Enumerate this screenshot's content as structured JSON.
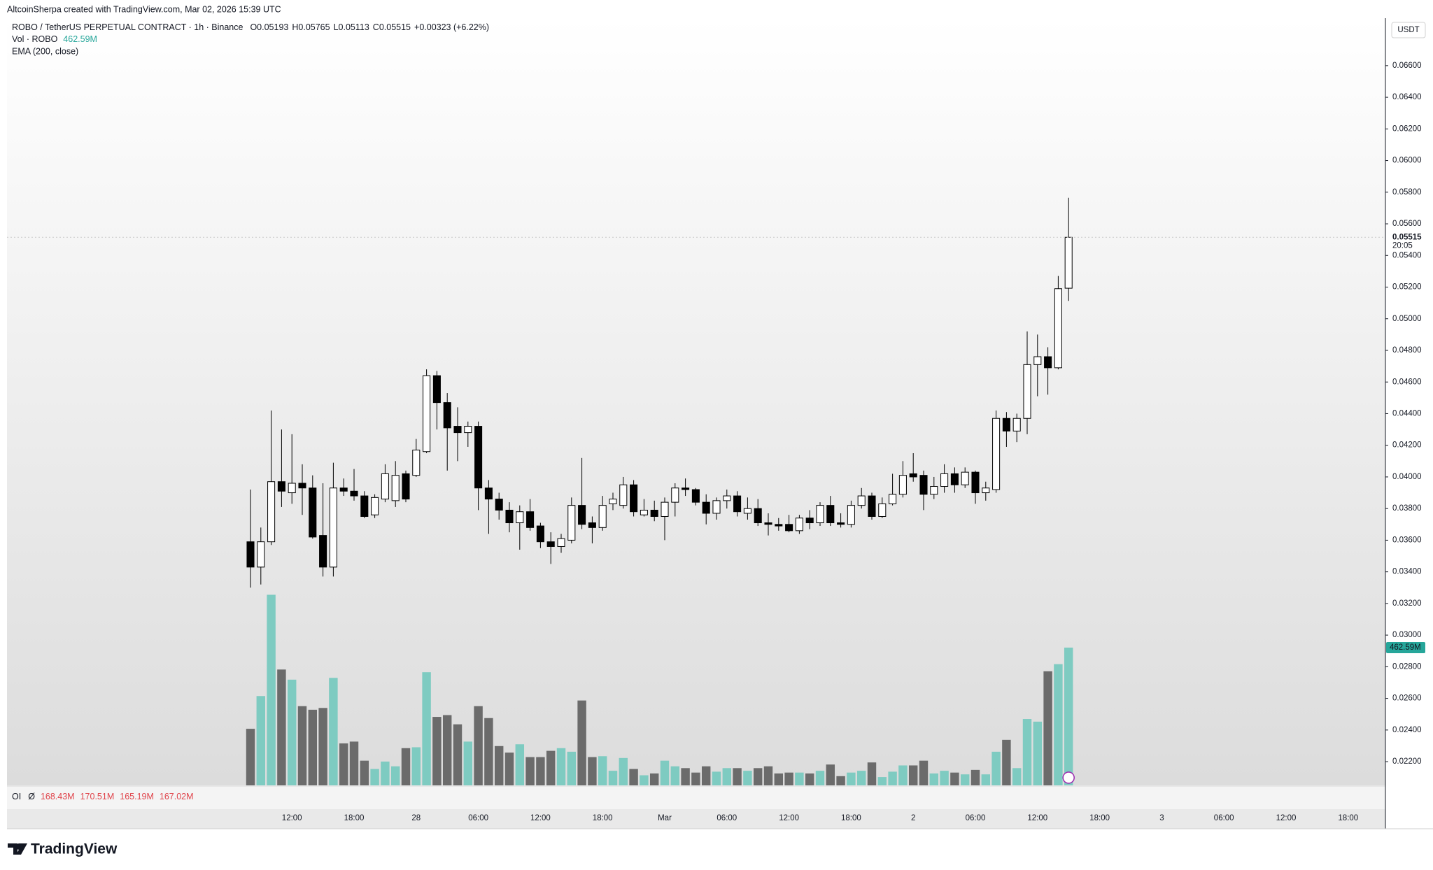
{
  "header": {
    "attribution": "AltcoinSherpa created with TradingView.com, Mar 02, 2026 15:39 UTC"
  },
  "legend": {
    "symbol": "ROBO / TetherUS PERPETUAL CONTRACT · 1h · Binance",
    "o": "O",
    "h": "H",
    "l": "L",
    "c": "C",
    "change": "+0.00323 (+6.22%)",
    "vol_label": "Vol · ROBO",
    "ema_label": "EMA (200, close)"
  },
  "oi": {
    "label": "OI",
    "symbol": "Ø",
    "values": [
      "168.43M",
      "170.51M",
      "165.19M",
      "167.02M"
    ]
  },
  "footer": {
    "logo": "TradingView"
  },
  "chart_data": {
    "type": "candlestick",
    "price_axis_unit": "USDT",
    "countdown": "20:05",
    "up_color": "#ffffff",
    "down_color": "#000000",
    "border_color": "#000000",
    "ylim": [
      0.0205,
      0.069
    ],
    "yticks": [
      {
        "value": 0.022,
        "label": "0.02200"
      },
      {
        "value": 0.024,
        "label": "0.02400"
      },
      {
        "value": 0.026,
        "label": "0.02600"
      },
      {
        "value": 0.028,
        "label": "0.02800"
      },
      {
        "value": 0.03,
        "label": "0.03000"
      },
      {
        "value": 0.032,
        "label": "0.03200"
      },
      {
        "value": 0.034,
        "label": "0.03400"
      },
      {
        "value": 0.036,
        "label": "0.03600"
      },
      {
        "value": 0.038,
        "label": "0.03800"
      },
      {
        "value": 0.04,
        "label": "0.04000"
      },
      {
        "value": 0.042,
        "label": "0.04200"
      },
      {
        "value": 0.044,
        "label": "0.04400"
      },
      {
        "value": 0.046,
        "label": "0.04600"
      },
      {
        "value": 0.048,
        "label": "0.04800"
      },
      {
        "value": 0.05,
        "label": "0.05000"
      },
      {
        "value": 0.052,
        "label": "0.05200"
      },
      {
        "value": 0.054,
        "label": "0.05400"
      },
      {
        "value": 0.056,
        "label": "0.05600"
      },
      {
        "value": 0.058,
        "label": "0.05800"
      },
      {
        "value": 0.06,
        "label": "0.06000"
      },
      {
        "value": 0.062,
        "label": "0.06200"
      },
      {
        "value": 0.064,
        "label": "0.06400"
      },
      {
        "value": 0.066,
        "label": "0.06600"
      }
    ],
    "categories": [
      null,
      null,
      null,
      null,
      "12:00",
      null,
      null,
      null,
      null,
      null,
      "18:00",
      null,
      null,
      null,
      null,
      null,
      "28",
      null,
      null,
      null,
      null,
      null,
      "06:00",
      null,
      null,
      null,
      null,
      null,
      "12:00",
      null,
      null,
      null,
      null,
      null,
      "18:00",
      null,
      null,
      null,
      null,
      null,
      "Mar",
      null,
      null,
      null,
      null,
      null,
      "06:00",
      null,
      null,
      null,
      null,
      null,
      "12:00",
      null,
      null,
      null,
      null,
      null,
      "18:00",
      null,
      null,
      null,
      null,
      null,
      "2",
      null,
      null,
      null,
      null,
      null,
      "06:00",
      null,
      null,
      null,
      null,
      null,
      "12:00",
      null,
      null,
      null,
      null,
      null,
      "18:00",
      null,
      null,
      null,
      null,
      null,
      "3",
      null,
      null,
      null,
      null,
      null,
      "06:00",
      null,
      null,
      null,
      null,
      null,
      "12:00",
      null,
      null,
      null,
      null,
      null,
      "18:00"
    ],
    "open": [
      0.0359,
      0.0343,
      0.0359,
      0.0397,
      0.039,
      0.0396,
      0.0393,
      0.0363,
      0.0343,
      0.0393,
      0.0391,
      0.0388,
      0.0376,
      0.0386,
      0.0385,
      0.0402,
      0.0401,
      0.0416,
      0.0464,
      0.0447,
      0.0432,
      0.0428,
      0.0432,
      0.0393,
      0.0386,
      0.0379,
      0.0371,
      0.0378,
      0.0369,
      0.0359,
      0.0356,
      0.036,
      0.0382,
      0.0371,
      0.0368,
      0.0383,
      0.0382,
      0.0395,
      0.0376,
      0.0379,
      0.0375,
      0.0384,
      0.0393,
      0.0392,
      0.0384,
      0.0377,
      0.0385,
      0.0388,
      0.0377,
      0.038,
      0.0371,
      0.037,
      0.037,
      0.0366,
      0.0374,
      0.0371,
      0.0382,
      0.0371,
      0.037,
      0.0382,
      0.0388,
      0.0375,
      0.0383,
      0.0389,
      0.0402,
      0.0401,
      0.0389,
      0.0394,
      0.0402,
      0.0395,
      0.0403,
      0.039,
      0.0392,
      0.0437,
      0.0429,
      0.0437,
      0.0471,
      0.0476,
      0.0469,
      0.05193,
      null,
      null,
      null,
      null,
      null,
      null,
      null,
      null,
      null,
      null,
      null,
      null,
      null,
      null,
      null,
      null,
      null,
      null,
      null,
      null,
      null,
      null,
      null,
      null,
      null,
      null,
      null
    ],
    "high": [
      0.0392,
      0.0368,
      0.0442,
      0.043,
      0.0427,
      0.0408,
      0.0401,
      0.0396,
      0.0409,
      0.0399,
      0.0405,
      0.0391,
      0.0389,
      0.0408,
      0.041,
      0.0404,
      0.0424,
      0.0468,
      0.0467,
      0.0453,
      0.0444,
      0.0435,
      0.0435,
      0.0398,
      0.039,
      0.0384,
      0.0382,
      0.0386,
      0.0371,
      0.0365,
      0.0364,
      0.0387,
      0.0412,
      0.0375,
      0.0388,
      0.039,
      0.04,
      0.0398,
      0.0386,
      0.0385,
      0.0387,
      0.0396,
      0.0399,
      0.0393,
      0.0389,
      0.0387,
      0.0392,
      0.0391,
      0.0387,
      0.0386,
      0.0377,
      0.0374,
      0.0376,
      0.0376,
      0.0379,
      0.0384,
      0.0388,
      0.0377,
      0.0385,
      0.0393,
      0.039,
      0.0387,
      0.0402,
      0.041,
      0.0415,
      0.0404,
      0.04,
      0.0408,
      0.0406,
      0.0406,
      0.0404,
      0.0397,
      0.0442,
      0.0441,
      0.044,
      0.0492,
      0.049,
      0.0482,
      0.0527,
      0.05765,
      null,
      null,
      null,
      null,
      null,
      null,
      null,
      null,
      null,
      null,
      null,
      null,
      null,
      null,
      null,
      null,
      null,
      null,
      null,
      null,
      null,
      null,
      null,
      null,
      null,
      null,
      null
    ],
    "low": [
      0.033,
      0.0332,
      0.0357,
      0.0381,
      0.0383,
      0.0376,
      0.0361,
      0.0337,
      0.0337,
      0.0388,
      0.0385,
      0.0374,
      0.0374,
      0.0384,
      0.0381,
      0.0384,
      0.04,
      0.0415,
      0.043,
      0.0404,
      0.041,
      0.0419,
      0.0379,
      0.0364,
      0.0373,
      0.0365,
      0.0354,
      0.0366,
      0.0355,
      0.0345,
      0.0352,
      0.0358,
      0.0367,
      0.0358,
      0.0366,
      0.0379,
      0.038,
      0.0375,
      0.0375,
      0.0372,
      0.036,
      0.0375,
      0.0388,
      0.0382,
      0.037,
      0.0373,
      0.038,
      0.0375,
      0.0373,
      0.0369,
      0.0363,
      0.0366,
      0.0365,
      0.0364,
      0.0367,
      0.0369,
      0.0369,
      0.0368,
      0.0368,
      0.038,
      0.0373,
      0.0374,
      0.0382,
      0.0387,
      0.0397,
      0.0379,
      0.0386,
      0.039,
      0.039,
      0.0393,
      0.0383,
      0.0385,
      0.039,
      0.0419,
      0.0422,
      0.0427,
      0.0451,
      0.0452,
      0.0468,
      0.05113,
      null,
      null,
      null,
      null,
      null,
      null,
      null,
      null,
      null,
      null,
      null,
      null,
      null,
      null,
      null,
      null,
      null,
      null,
      null,
      null,
      null,
      null,
      null,
      null,
      null,
      null,
      null
    ],
    "close": [
      0.0343,
      0.0359,
      0.0397,
      0.0391,
      0.0396,
      0.0393,
      0.0362,
      0.0343,
      0.0393,
      0.0391,
      0.0388,
      0.0375,
      0.0387,
      0.0402,
      0.0401,
      0.0386,
      0.0417,
      0.0464,
      0.0447,
      0.0431,
      0.0428,
      0.0432,
      0.0393,
      0.0386,
      0.0379,
      0.0371,
      0.0378,
      0.0368,
      0.0359,
      0.0356,
      0.0361,
      0.0382,
      0.037,
      0.0368,
      0.0382,
      0.0386,
      0.0395,
      0.0378,
      0.0379,
      0.0375,
      0.0384,
      0.0393,
      0.0392,
      0.0384,
      0.0377,
      0.0385,
      0.0388,
      0.0378,
      0.038,
      0.0371,
      0.037,
      0.0369,
      0.0366,
      0.0374,
      0.0371,
      0.0382,
      0.0371,
      0.037,
      0.0382,
      0.0388,
      0.0375,
      0.0383,
      0.0389,
      0.0401,
      0.04,
      0.0389,
      0.0394,
      0.0402,
      0.0395,
      0.0403,
      0.039,
      0.0393,
      0.0437,
      0.0429,
      0.0437,
      0.0471,
      0.0476,
      0.0469,
      0.0519,
      0.05515,
      null,
      null,
      null,
      null,
      null,
      null,
      null,
      null,
      null,
      null,
      null,
      null,
      null,
      null,
      null,
      null,
      null,
      null,
      null,
      null,
      null,
      null,
      null,
      null,
      null,
      null,
      null
    ],
    "volume": {
      "up_color": "#7ecbc1",
      "down_color": "#6b6b6b",
      "tag_color": "#26a69a",
      "ylim": [
        0,
        2576
      ],
      "values": [
        190,
        300,
        640,
        389,
        355,
        266,
        254,
        260,
        361,
        141,
        147,
        83,
        55,
        80,
        64,
        125,
        128,
        380,
        230,
        236,
        205,
        147,
        266,
        226,
        132,
        110,
        138,
        95,
        95,
        116,
        125,
        113,
        285,
        95,
        98,
        49,
        92,
        55,
        34,
        40,
        83,
        64,
        58,
        43,
        64,
        46,
        58,
        58,
        49,
        58,
        64,
        40,
        43,
        43,
        40,
        49,
        70,
        31,
        43,
        49,
        77,
        28,
        46,
        67,
        67,
        83,
        40,
        49,
        43,
        37,
        52,
        37,
        113,
        153,
        58,
        223,
        214,
        383,
        407,
        462.59,
        null,
        null,
        null,
        null,
        null,
        null,
        null,
        null,
        null,
        null,
        null,
        null,
        null,
        null,
        null,
        null,
        null,
        null,
        null,
        null,
        null,
        null,
        null,
        null,
        null,
        null,
        null
      ],
      "value_labels": [
        null,
        null,
        null,
        null,
        null,
        null,
        null,
        null,
        null,
        null,
        null,
        null,
        null,
        null,
        null,
        null,
        null,
        null,
        null,
        null,
        null,
        null,
        null,
        null,
        null,
        null,
        null,
        null,
        null,
        null,
        null,
        null,
        null,
        null,
        null,
        null,
        null,
        null,
        null,
        null,
        null,
        null,
        null,
        null,
        null,
        null,
        null,
        null,
        null,
        null,
        null,
        null,
        null,
        null,
        null,
        null,
        null,
        null,
        null,
        null,
        null,
        null,
        null,
        null,
        null,
        null,
        null,
        null,
        null,
        null,
        null,
        null,
        null,
        null,
        null,
        null,
        null,
        null,
        null,
        "462.59M",
        null,
        null,
        null,
        null,
        null,
        null,
        null,
        null,
        null,
        null,
        null,
        null,
        null,
        null,
        null,
        null,
        null,
        null,
        null,
        null,
        null,
        null,
        null,
        null,
        null,
        null,
        null
      ]
    }
  }
}
